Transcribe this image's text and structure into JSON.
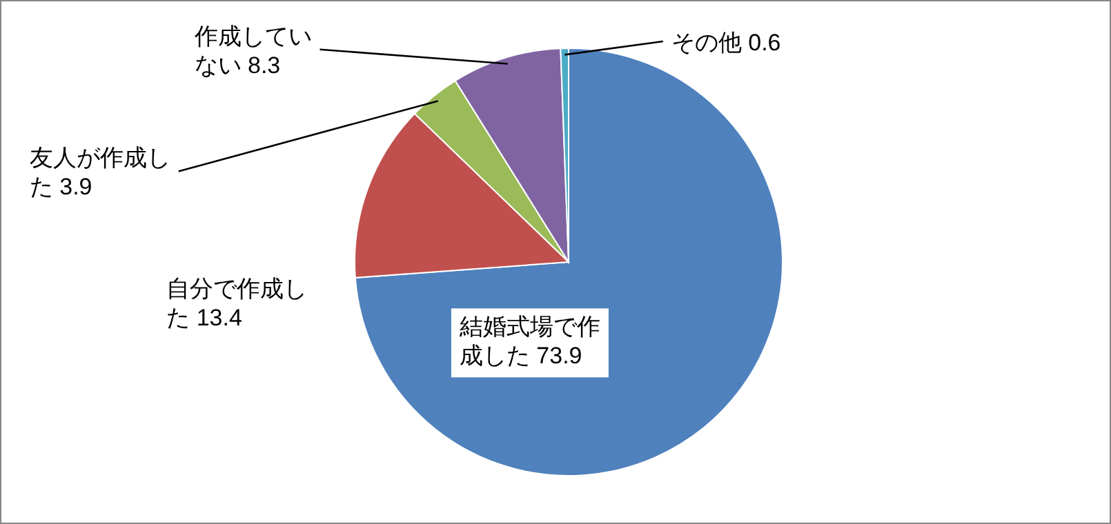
{
  "chart_data": {
    "type": "pie",
    "categories": [
      "結婚式場で作成した",
      "自分で作成した",
      "友人が作成した",
      "作成していない",
      "その他"
    ],
    "values": [
      73.9,
      13.4,
      3.9,
      8.3,
      0.6
    ],
    "colors": [
      "#4f81bd",
      "#c0504d",
      "#9bbb59",
      "#8064a2",
      "#4bacc6"
    ],
    "data_labels": true,
    "legend": false
  }
}
